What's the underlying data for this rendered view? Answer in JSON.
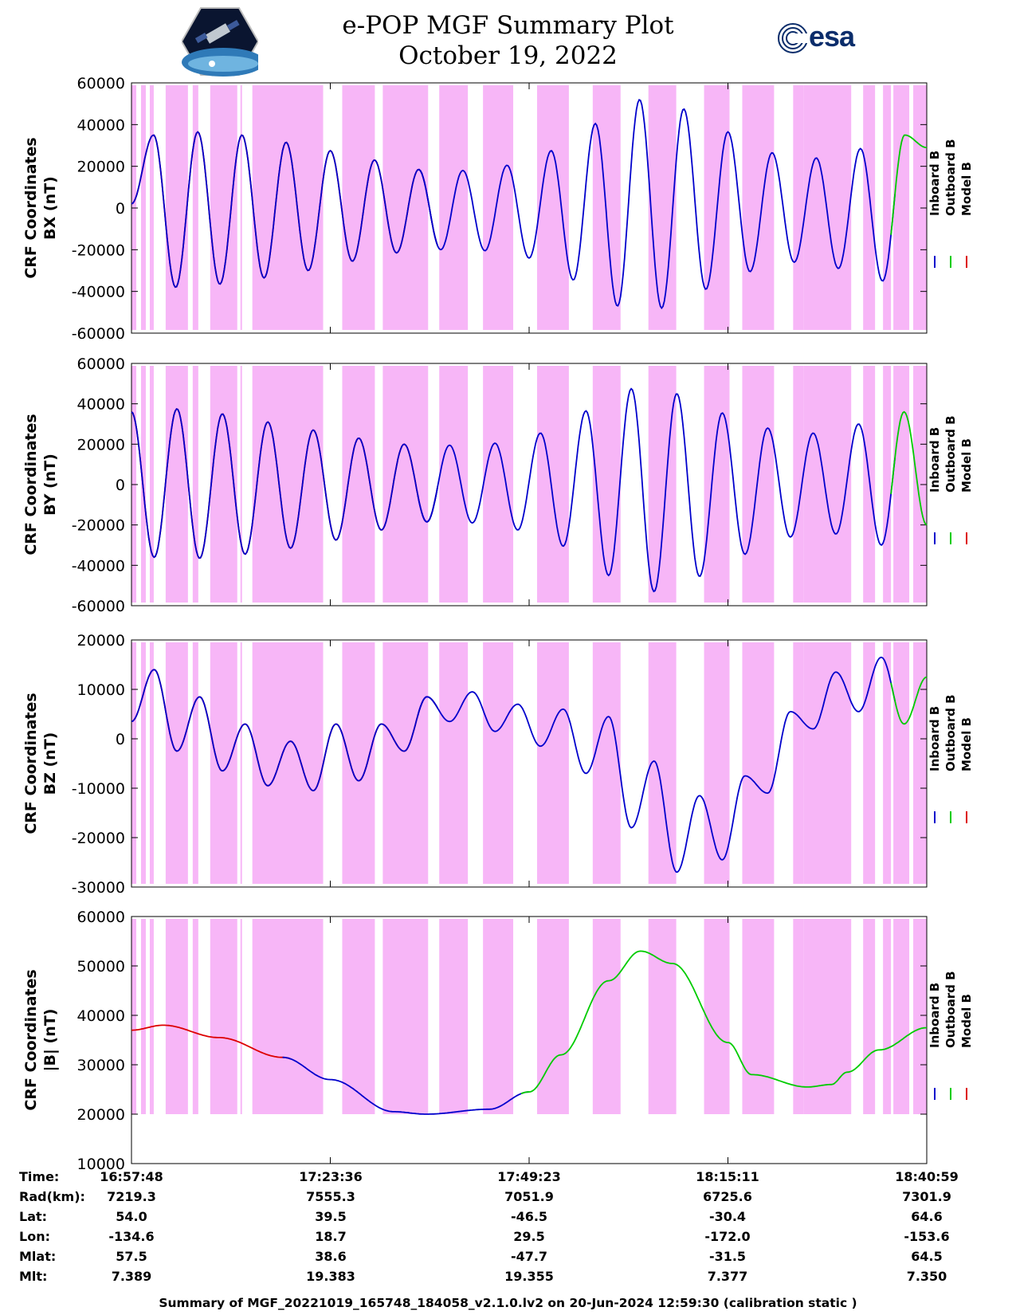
{
  "header": {
    "title_line1": "e-POP MGF Summary Plot",
    "title_line2": "October 19, 2022",
    "left_logo": "cassiope-satellite-logo",
    "right_logo": "esa-logo",
    "right_logo_text": "esa"
  },
  "colors": {
    "inboard": "#0000cc",
    "outboard": "#00cc00",
    "model": "#dd0000",
    "shade": "#f7b6f7"
  },
  "legend": [
    "Inboard B",
    "Outboard B",
    "Model B"
  ],
  "chart_data": [
    {
      "type": "line",
      "ylabel_line1": "CRF Coordinates",
      "ylabel_line2": "BX (nT)",
      "ylim": [
        -60000,
        60000
      ],
      "yticks": [
        60000,
        40000,
        20000,
        0,
        -20000,
        -40000,
        -60000
      ],
      "peaks": [
        2000,
        35000,
        -38000,
        36500,
        -36500,
        35000,
        -33500,
        31500,
        -30000,
        27500,
        -25500,
        23000,
        -21500,
        18500,
        -20000,
        18000,
        -20500,
        20500,
        -24000,
        27500,
        -34500,
        40500,
        -47000,
        52000,
        -48000,
        47500,
        -39000,
        36500,
        -30500,
        26500,
        -26000,
        24000,
        -29000,
        28500,
        -35000,
        35000,
        29000
      ]
    },
    {
      "type": "line",
      "ylabel_line1": "CRF Coordinates",
      "ylabel_line2": "BY (nT)",
      "ylim": [
        -60000,
        60000
      ],
      "yticks": [
        60000,
        40000,
        20000,
        0,
        -20000,
        -40000,
        -60000
      ],
      "peaks": [
        36000,
        -36000,
        37500,
        -36500,
        35000,
        -34500,
        31000,
        -31500,
        27000,
        -27500,
        23000,
        -22500,
        20000,
        -18500,
        19500,
        -19000,
        20500,
        -22500,
        25500,
        -30500,
        36500,
        -45000,
        47500,
        -53000,
        45000,
        -45500,
        35500,
        -34500,
        28000,
        -26000,
        25500,
        -24500,
        30000,
        -30000,
        36000,
        -20000
      ]
    },
    {
      "type": "line",
      "ylabel_line1": "CRF Coordinates",
      "ylabel_line2": "BZ (nT)",
      "ylim": [
        -30000,
        20000
      ],
      "yticks": [
        20000,
        10000,
        0,
        -10000,
        -20000,
        -30000
      ],
      "peaks": [
        3500,
        14000,
        -2500,
        8500,
        -6500,
        3000,
        -9500,
        -500,
        -10500,
        3000,
        -8500,
        3000,
        -2500,
        8500,
        3500,
        9500,
        1500,
        7000,
        -1500,
        6000,
        -7000,
        4500,
        -18000,
        -4500,
        -27000,
        -11500,
        -24500,
        -7500,
        -11000,
        5500,
        2000,
        13500,
        5500,
        16500,
        3000,
        12500
      ]
    },
    {
      "type": "line",
      "ylabel_line1": "CRF Coordinates",
      "ylabel_line2": "|B| (nT)",
      "ylim": [
        10000,
        60000
      ],
      "yticks": [
        60000,
        50000,
        40000,
        30000,
        20000,
        10000
      ],
      "x_frac": [
        0.0,
        0.04,
        0.11,
        0.19,
        0.25,
        0.33,
        0.37,
        0.45,
        0.5,
        0.54,
        0.6,
        0.64,
        0.68,
        0.75,
        0.78,
        0.85,
        0.88,
        0.9,
        0.94,
        1.0
      ],
      "values": [
        37000,
        38000,
        35500,
        31500,
        27000,
        20500,
        20000,
        21000,
        24500,
        32000,
        47000,
        53000,
        50500,
        34500,
        28000,
        25500,
        26000,
        28500,
        33000,
        37500
      ]
    }
  ],
  "x_axis": {
    "rows": [
      {
        "label": "Time:",
        "values": [
          "16:57:48",
          "17:23:36",
          "17:49:23",
          "18:15:11",
          "18:40:59"
        ]
      },
      {
        "label": "Rad(km):",
        "values": [
          "7219.3",
          "7555.3",
          "7051.9",
          "6725.6",
          "7301.9"
        ]
      },
      {
        "label": "Lat:",
        "values": [
          "54.0",
          "39.5",
          "-46.5",
          "-30.4",
          "64.6"
        ]
      },
      {
        "label": "Lon:",
        "values": [
          "-134.6",
          "18.7",
          "29.5",
          "-172.0",
          "-153.6"
        ]
      },
      {
        "label": "Mlat:",
        "values": [
          "57.5",
          "38.6",
          "-47.7",
          "-31.5",
          "64.5"
        ]
      },
      {
        "label": "Mlt:",
        "values": [
          "7.389",
          "19.383",
          "19.355",
          "7.377",
          "7.350"
        ]
      }
    ]
  },
  "footer": "Summary of MGF_20221019_165748_184058_v2.1.0.lv2 on 20-Jun-2024 12:59:30 (calibration static )"
}
